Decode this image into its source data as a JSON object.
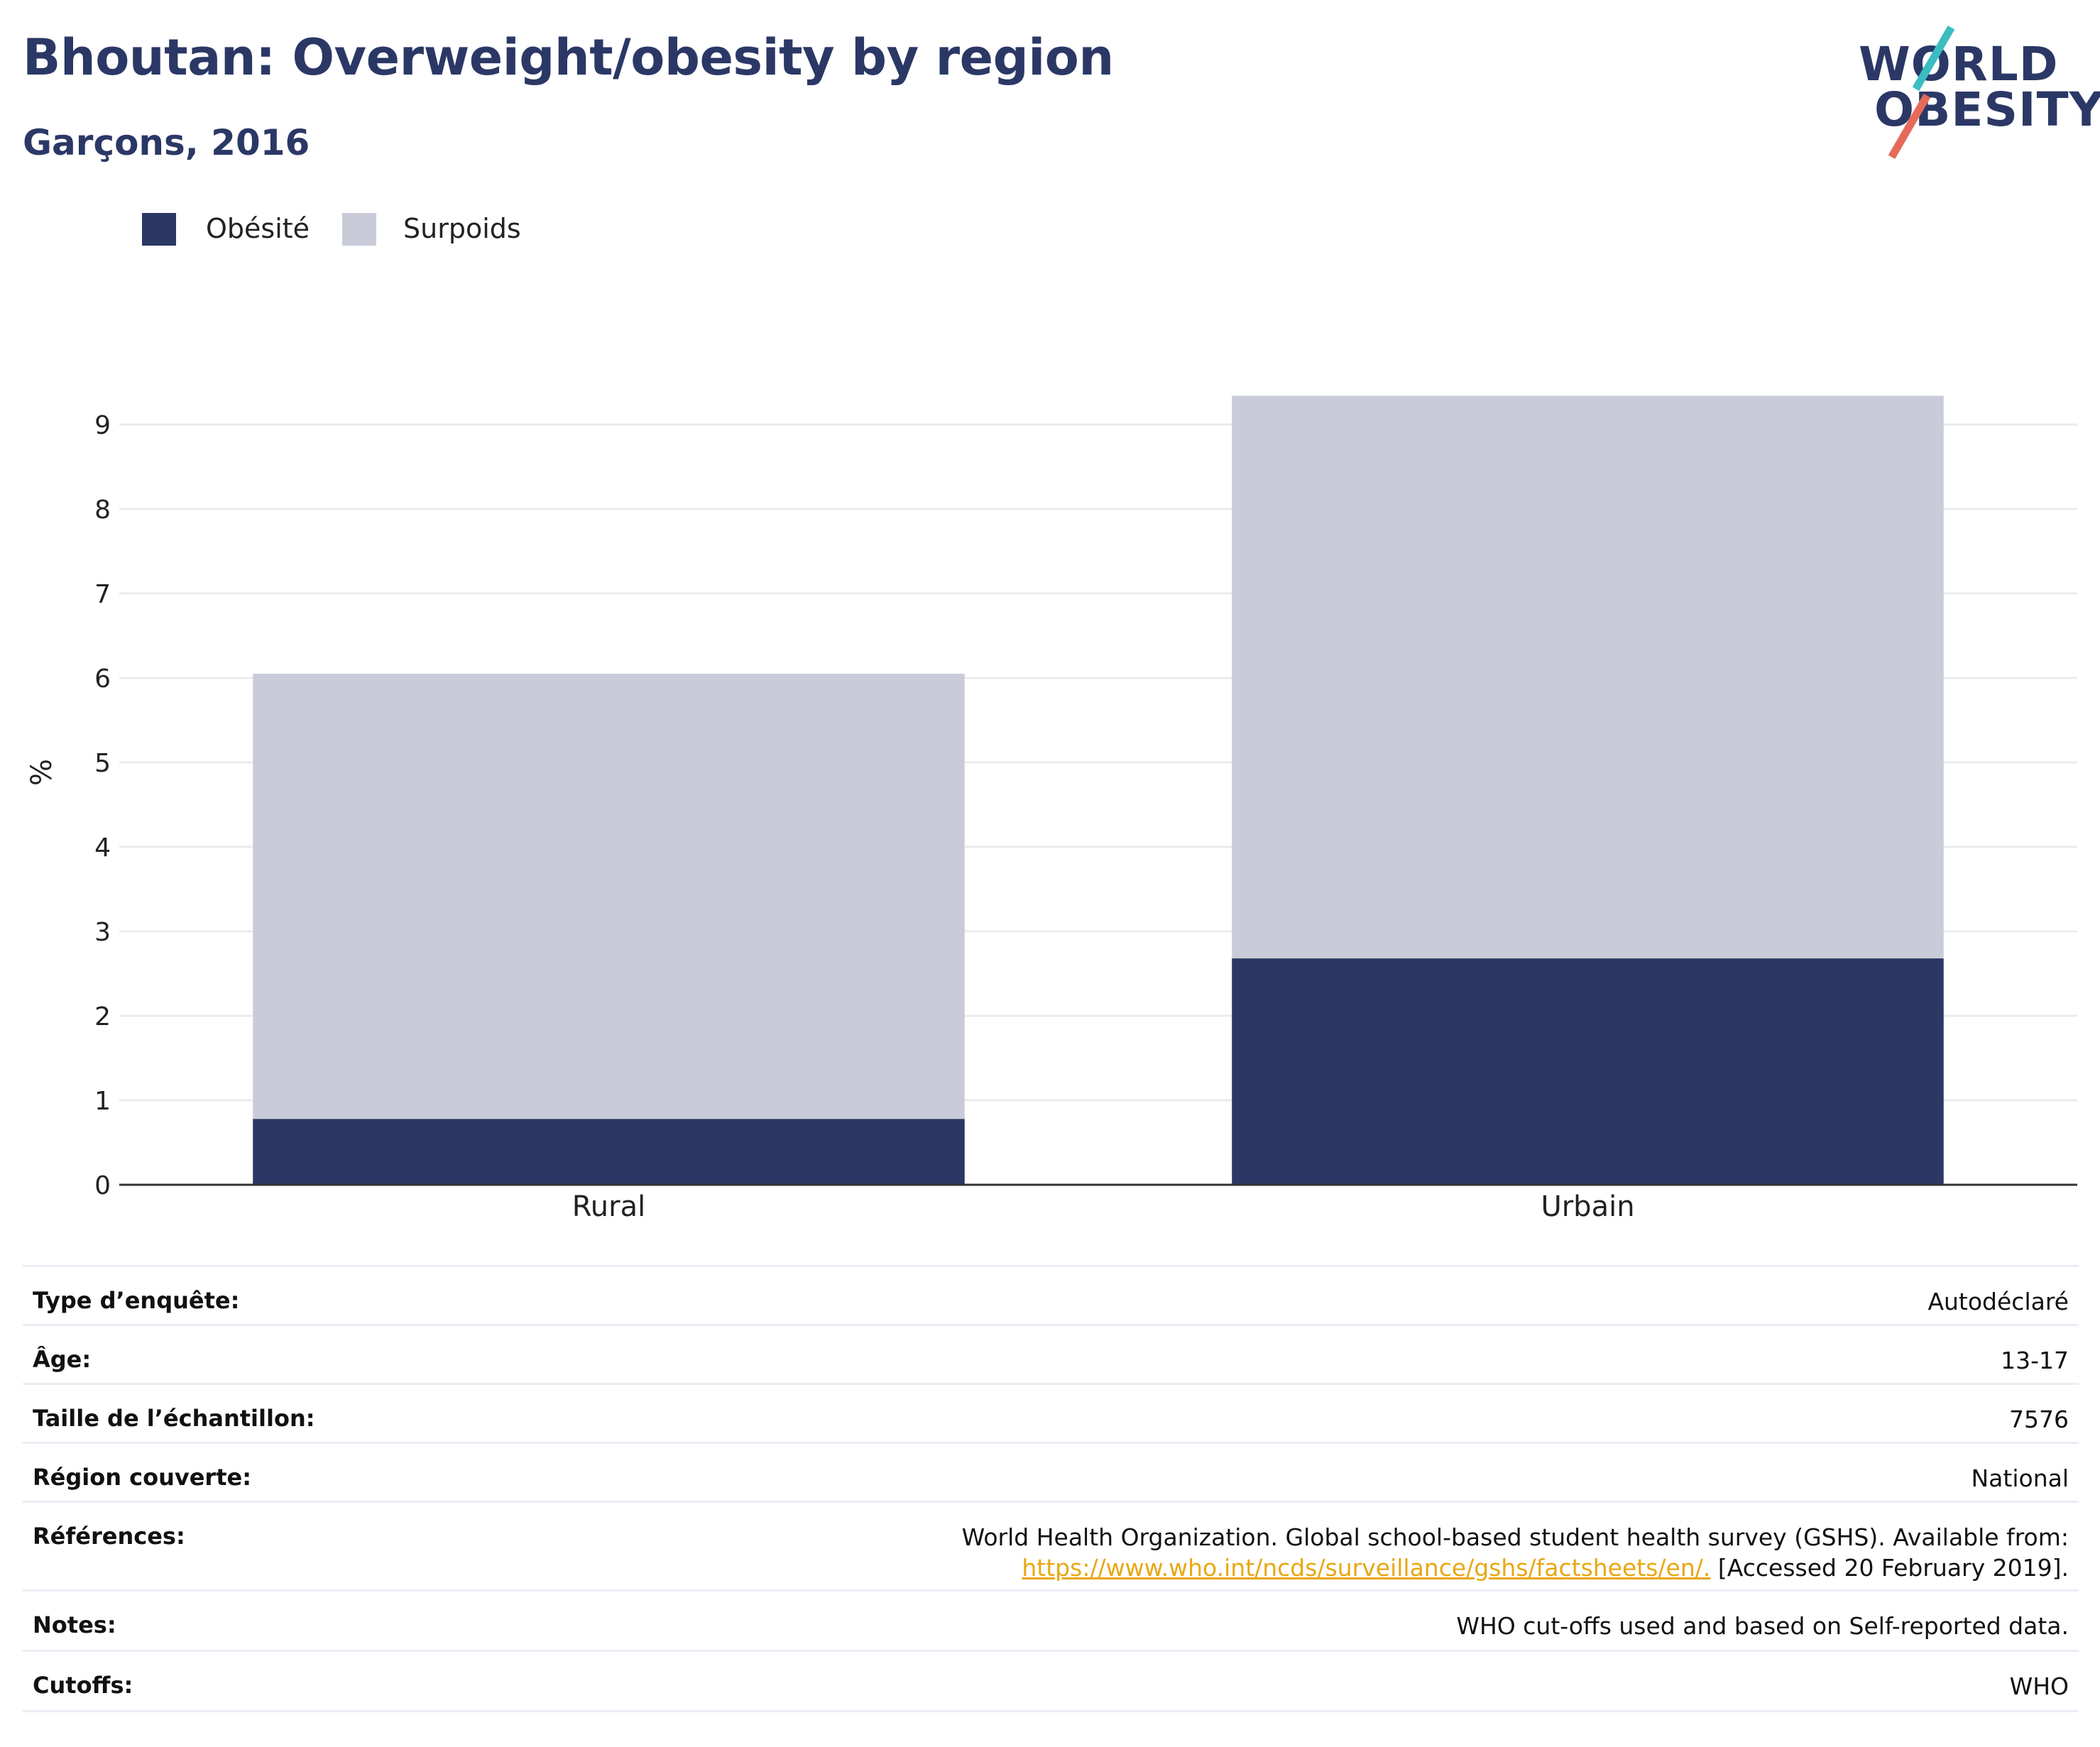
{
  "header": {
    "title": "Bhoutan: Overweight/obesity by region",
    "subtitle": "Garçons, 2016"
  },
  "logo": {
    "line1": "WORLD",
    "line2": "OBESITY"
  },
  "colors": {
    "obesity": "#2b3764",
    "overweight": "#c9ccd8",
    "brand_teal": "#3bbdc2",
    "brand_red": "#e56a5a",
    "link": "#e8a712"
  },
  "chart_data": {
    "type": "bar",
    "stacked": true,
    "categories": [
      "Rural",
      "Urbain"
    ],
    "series": [
      {
        "name": "Obésité",
        "values": [
          0.78,
          2.68
        ],
        "color": "#2b3764"
      },
      {
        "name": "Surpoids",
        "values": [
          5.27,
          6.66
        ],
        "color": "#c9ccd8"
      }
    ],
    "ylabel": "%",
    "xlabel": "",
    "ylim": [
      0,
      10
    ],
    "yticks": [
      0,
      1,
      2,
      3,
      4,
      5,
      6,
      7,
      8,
      9
    ],
    "grid": true,
    "legend_position": "top-left"
  },
  "info": [
    {
      "key": "Type d’enquête:",
      "value": "Autodéclaré"
    },
    {
      "key": "Âge:",
      "value": "13-17"
    },
    {
      "key": "Taille de l’échantillon:",
      "value": "7576"
    },
    {
      "key": "Région couverte:",
      "value": "National"
    },
    {
      "key": "Références:",
      "value": "World Health Organization. Global school-based student health survey (GSHS). Available from:",
      "link": "https://www.who.int/ncds/surveillance/gshs/factsheets/en/.",
      "value_after": " [Accessed 20 February 2019]."
    },
    {
      "key": "Notes:",
      "value": "WHO cut-offs used and based on Self-reported data."
    },
    {
      "key": "Cutoffs:",
      "value": "WHO"
    }
  ]
}
